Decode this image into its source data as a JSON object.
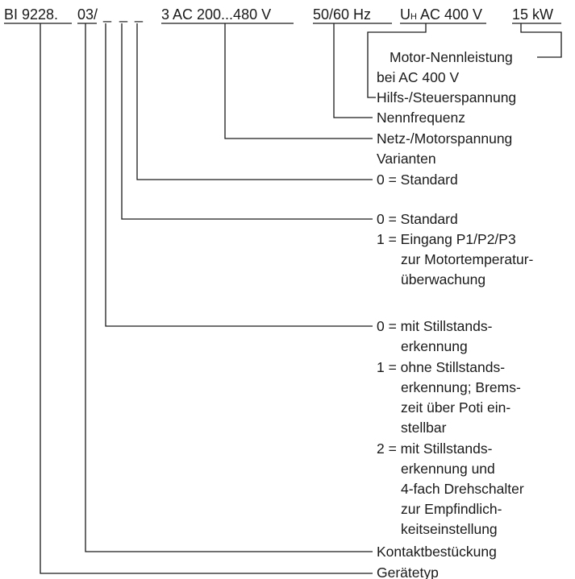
{
  "code": {
    "base": "BI 9228.",
    "variant": "03/",
    "placeholders": [
      "_",
      "_",
      "_"
    ],
    "voltage": "3 AC 200...480 V",
    "frequency": "50/60 Hz",
    "aux_prefix": "U",
    "aux_subscript": "H",
    "aux_value": "AC 400 V",
    "power": "15 kW"
  },
  "labels": {
    "motor_power_line1": "Motor-Nennleistung",
    "motor_power_line2": "bei AC 400 V",
    "aux_voltage": "Hilfs-/Steuerspannung",
    "rated_frequency": "Nennfrequenz",
    "mains_motor_voltage": "Netz-/Motorspannung",
    "variants": "Varianten",
    "variant_a_option0": "0 = Standard",
    "variant_b_option0": "0 = Standard",
    "variant_b_option1_line1": "1 = Eingang P1/P2/P3",
    "variant_b_option1_line2": "zur Motortemperatur-",
    "variant_b_option1_line3": "überwachung",
    "variant_c_option0_line1": "0 = mit Stillstands-",
    "variant_c_option0_line2": "erkennung",
    "variant_c_option1_line1": "1 = ohne Stillstands-",
    "variant_c_option1_line2": "erkennung; Brems-",
    "variant_c_option1_line3": "zeit über Poti ein-",
    "variant_c_option1_line4": "stellbar",
    "variant_c_option2_line1": "2 = mit Stillstands-",
    "variant_c_option2_line2": "erkennung und",
    "variant_c_option2_line3": "4-fach Drehschalter",
    "variant_c_option2_line4": "zur Empfindlich-",
    "variant_c_option2_line5": "keitseinstellung",
    "contact_equipment": "Kontaktbestückung",
    "device_type": "Gerätetyp"
  }
}
